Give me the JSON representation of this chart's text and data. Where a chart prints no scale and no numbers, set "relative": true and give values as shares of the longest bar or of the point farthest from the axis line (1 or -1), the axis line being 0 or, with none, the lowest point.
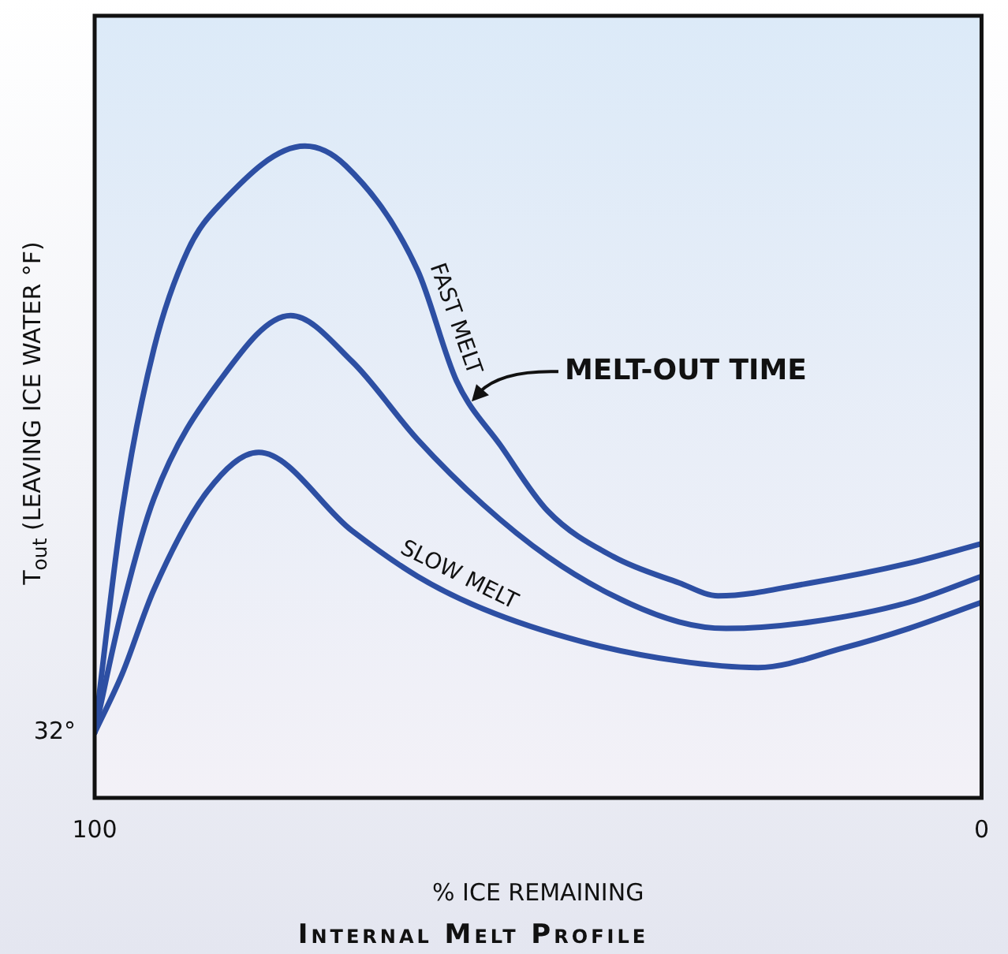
{
  "chart_data": {
    "type": "line",
    "title": "Internal Melt Profile",
    "xlabel": "% ICE REMAINING",
    "ylabel": "T$_{out}$  (LEAVING ICE WATER °F)",
    "relative": true,
    "xlim": [
      100,
      0
    ],
    "xticks": [
      100,
      0
    ],
    "legend": false,
    "marker": "none",
    "line_style": "solid",
    "annotations": [
      {
        "text": "32°",
        "x": 100,
        "y": 0.1
      },
      "MELT-OUT TIME"
    ],
    "series": [
      {
        "name": "FAST MELT",
        "color": "#2d4fa3",
        "x": [
          100,
          96.9,
          93.3,
          89.5,
          85.9,
          76.3,
          71.7,
          63.6,
          59.2,
          54.2,
          48.9,
          41.5,
          34.1,
          29.7,
          19.2,
          8.2,
          0
        ],
        "values": [
          0.1,
          0.44,
          0.69,
          0.84,
          0.91,
          1,
          0.97,
          0.81,
          0.64,
          0.54,
          0.44,
          0.37,
          0.33,
          0.31,
          0.33,
          0.36,
          0.39
        ]
      },
      {
        "color": "#2d4fa3",
        "x": [
          100,
          96.9,
          93.3,
          85.9,
          77.9,
          71.0,
          63.6,
          56.2,
          48.9,
          41.5,
          34.1,
          28.8,
          19.2,
          8.2,
          0
        ],
        "values": [
          0.1,
          0.29,
          0.46,
          0.64,
          0.74,
          0.67,
          0.55,
          0.45,
          0.37,
          0.31,
          0.27,
          0.26,
          0.27,
          0.3,
          0.34
        ]
      },
      {
        "name": "SLOW MELT",
        "color": "#2d4fa3",
        "x": [
          100,
          96.9,
          93.3,
          87.3,
          81.5,
          71.0,
          63.6,
          56.2,
          45.1,
          34.1,
          25.2,
          15.6,
          8.2,
          0
        ],
        "values": [
          0.1,
          0.19,
          0.32,
          0.47,
          0.53,
          0.41,
          0.34,
          0.29,
          0.24,
          0.21,
          0.2,
          0.23,
          0.26,
          0.3
        ]
      }
    ]
  }
}
